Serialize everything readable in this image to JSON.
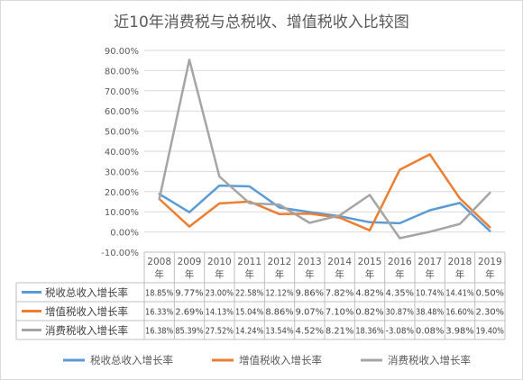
{
  "chart_data": {
    "type": "line",
    "title": "近10年消费税与总税收、增值税收入比较图",
    "categories": [
      "2008年",
      "2009年",
      "2010年",
      "2011年",
      "2012年",
      "2013年",
      "2014年",
      "2015年",
      "2016年",
      "2017年",
      "2018年",
      "2019年"
    ],
    "y_ticks": [
      "90.00%",
      "80.00%",
      "70.00%",
      "60.00%",
      "50.00%",
      "40.00%",
      "30.00%",
      "20.00%",
      "10.00%",
      "0.00%",
      "-10.00%"
    ],
    "ylim": [
      -10,
      90
    ],
    "grid": true,
    "legend_position": "bottom",
    "data_table": true,
    "series": [
      {
        "name": "税收总收入增长率",
        "color": "#5b9bd5",
        "values": [
          18.85,
          9.77,
          23.0,
          22.58,
          12.12,
          9.86,
          7.82,
          4.82,
          4.35,
          10.74,
          14.41,
          0.5
        ],
        "labels": [
          "18.85%",
          "9.77%",
          "23.00%",
          "22.58%",
          "12.12%",
          "9.86%",
          "7.82%",
          "4.82%",
          "4.35%",
          "10.74%",
          "14.41%",
          "0.50%"
        ]
      },
      {
        "name": "增值税收入增长率",
        "color": "#ed7d31",
        "values": [
          16.33,
          2.69,
          14.13,
          15.04,
          8.86,
          9.07,
          7.1,
          0.82,
          30.87,
          38.48,
          16.6,
          2.3
        ],
        "labels": [
          "16.33%",
          "2.69%",
          "14.13%",
          "15.04%",
          "8.86%",
          "9.07%",
          "7.10%",
          "0.82%",
          "30.87%",
          "38.48%",
          "16.60%",
          "2.30%"
        ]
      },
      {
        "name": "消费税收入增长率",
        "color": "#a5a5a5",
        "values": [
          16.38,
          85.39,
          27.52,
          14.24,
          13.54,
          4.52,
          8.21,
          18.36,
          -3.08,
          0.08,
          3.98,
          19.4
        ],
        "labels": [
          "16.38%",
          "85.39%",
          "27.52%",
          "14.24%",
          "13.54%",
          "4.52%",
          "8.21%",
          "18.36%",
          "-3.08%",
          "0.08%",
          "3.98%",
          "19.40%"
        ]
      }
    ]
  }
}
